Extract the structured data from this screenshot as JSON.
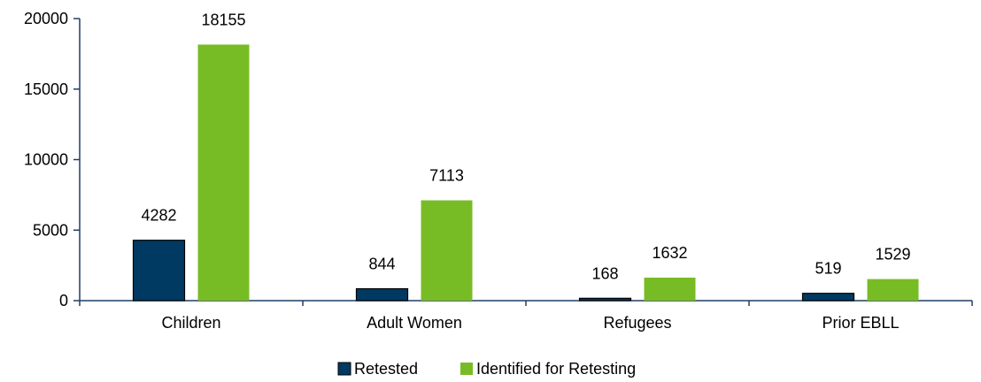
{
  "chart_data": {
    "type": "bar",
    "title": "",
    "xlabel": "",
    "ylabel": "",
    "categories": [
      "Children",
      "Adult Women",
      "Refugees",
      "Prior EBLL"
    ],
    "series": [
      {
        "name": "Retested",
        "color": "#003a63",
        "values": [
          4282,
          844,
          168,
          519
        ],
        "labels": [
          "4282",
          "844",
          "168",
          "519"
        ]
      },
      {
        "name": "Identified for Retesting",
        "color": "#78bc25",
        "values": [
          18155,
          7113,
          1632,
          1529
        ],
        "labels": [
          "18155",
          "7113",
          "1632",
          "1529"
        ]
      }
    ],
    "ylim": [
      0,
      20000
    ],
    "yticks": [
      0,
      5000,
      10000,
      15000,
      20000
    ],
    "ytick_labels": [
      "0",
      "5000",
      "10000",
      "15000",
      "20000"
    ],
    "grid": false,
    "legend_position": "bottom",
    "axis_color": "#1f3f66"
  }
}
